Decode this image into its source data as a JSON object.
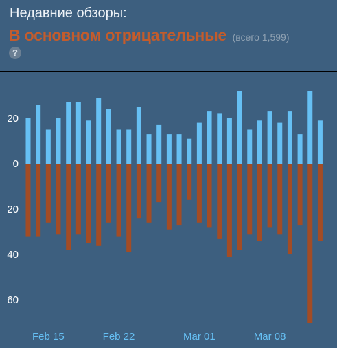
{
  "header": {
    "title": "Недавние обзоры:",
    "summary": "В основном отрицательные",
    "count": "(всего 1,599)",
    "help_icon": "question-icon",
    "help_glyph": "?"
  },
  "colors": {
    "background": "#3d5f7f",
    "positive": "#66c0f4",
    "negative": "#a34c25",
    "summary": "#c35c2c"
  },
  "chart_data": {
    "type": "bar",
    "stacked_diverging": true,
    "series": [
      {
        "name": "",
        "values": [
          20,
          26,
          15,
          20,
          27,
          27,
          19,
          29,
          24,
          15,
          15,
          25,
          13,
          17,
          13,
          13,
          11,
          18,
          23,
          22,
          20,
          32,
          15,
          19,
          23,
          18,
          23,
          13,
          32,
          19
        ]
      },
      {
        "name": "",
        "values": [
          -32,
          -32,
          -26,
          -31,
          -38,
          -31,
          -35,
          -36,
          -26,
          -32,
          -39,
          -24,
          -26,
          -17,
          -29,
          -27,
          -16,
          -26,
          -28,
          -33,
          -41,
          -38,
          -31,
          -34,
          -28,
          -31,
          -40,
          -27,
          -70,
          -34
        ]
      }
    ],
    "x_ticks": [
      "Feb 15",
      "Feb 22",
      "Mar 01",
      "Mar 08"
    ],
    "x_tick_positions": [
      2,
      9,
      17,
      24
    ],
    "y_ticks": [
      {
        "value": 20,
        "label": "20"
      },
      {
        "value": 0,
        "label": "0"
      },
      {
        "value": -20,
        "label": "20"
      },
      {
        "value": -40,
        "label": "40"
      },
      {
        "value": -60,
        "label": "60"
      }
    ],
    "ylim": [
      -72,
      36
    ],
    "grid": false,
    "legend": "none",
    "title": "",
    "xlabel": "",
    "ylabel": ""
  }
}
